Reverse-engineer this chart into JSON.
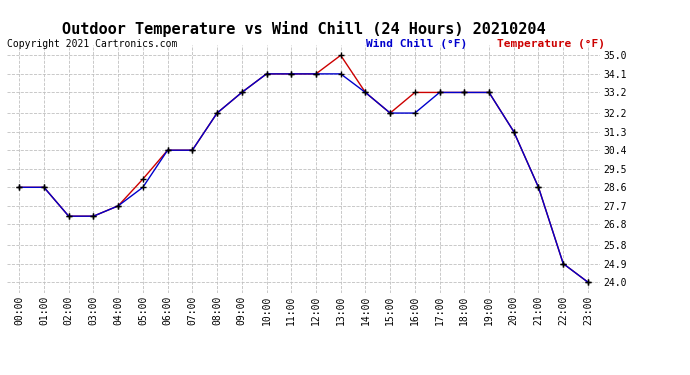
{
  "title": "Outdoor Temperature vs Wind Chill (24 Hours) 20210204",
  "copyright": "Copyright 2021 Cartronics.com",
  "legend_wind_chill": "Wind Chill (°F)",
  "legend_temperature": "Temperature (°F)",
  "x_labels": [
    "00:00",
    "01:00",
    "02:00",
    "03:00",
    "04:00",
    "05:00",
    "06:00",
    "07:00",
    "08:00",
    "09:00",
    "10:00",
    "11:00",
    "12:00",
    "13:00",
    "14:00",
    "15:00",
    "16:00",
    "17:00",
    "18:00",
    "19:00",
    "20:00",
    "21:00",
    "22:00",
    "23:00"
  ],
  "temperature": [
    28.6,
    28.6,
    27.2,
    27.2,
    27.7,
    29.0,
    30.4,
    30.4,
    32.2,
    33.2,
    34.1,
    34.1,
    34.1,
    35.0,
    33.2,
    32.2,
    33.2,
    33.2,
    33.2,
    33.2,
    31.3,
    28.6,
    24.9,
    24.0
  ],
  "wind_chill": [
    28.6,
    28.6,
    27.2,
    27.2,
    27.7,
    28.6,
    30.4,
    30.4,
    32.2,
    33.2,
    34.1,
    34.1,
    34.1,
    34.1,
    33.2,
    32.2,
    32.2,
    33.2,
    33.2,
    33.2,
    31.3,
    28.6,
    24.9,
    24.0
  ],
  "ylim_min": 23.5,
  "ylim_max": 35.5,
  "yticks": [
    35.0,
    34.1,
    33.2,
    32.2,
    31.3,
    30.4,
    29.5,
    28.6,
    27.7,
    26.8,
    25.8,
    24.9,
    24.0
  ],
  "bg_color": "#ffffff",
  "grid_color": "#c0c0c0",
  "temp_color": "#cc0000",
  "wind_color": "#0000cc",
  "marker_color": "#000000",
  "title_fontsize": 11,
  "tick_fontsize": 7,
  "copyright_fontsize": 7,
  "legend_fontsize": 8
}
